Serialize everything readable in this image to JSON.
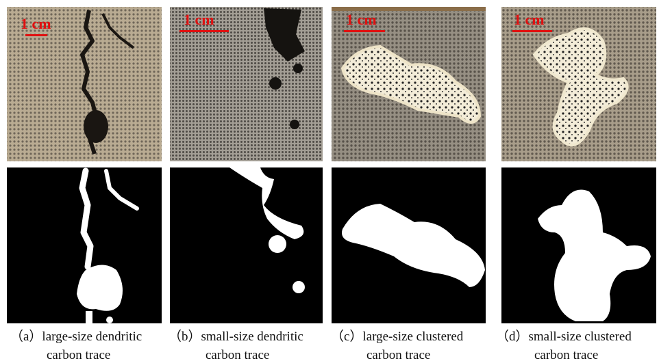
{
  "panels": [
    {
      "scale_label": "1 cm",
      "caption_line1": "（a）large-size dendritic",
      "caption_line2": "carbon trace"
    },
    {
      "scale_label": "1 cm",
      "caption_line1": "（b）small-size dendritic",
      "caption_line2": "carbon trace"
    },
    {
      "scale_label": "1 cm",
      "caption_line1": "（c）large-size clustered",
      "caption_line2": "carbon trace"
    },
    {
      "scale_label": "1 cm",
      "caption_line1": "（d）small-size clustered",
      "caption_line2": "carbon trace"
    }
  ]
}
